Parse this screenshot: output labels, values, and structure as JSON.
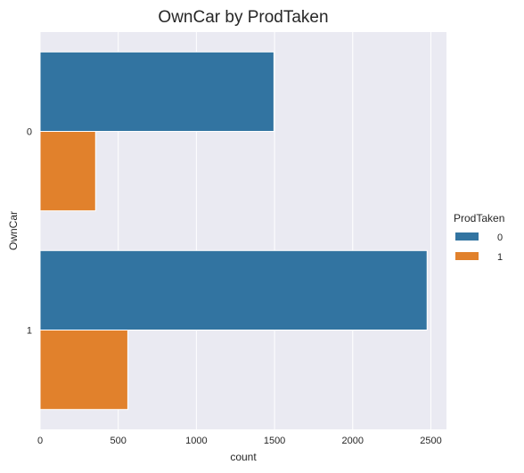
{
  "chart_data": {
    "type": "bar",
    "orientation": "horizontal",
    "title": "OwnCar by ProdTaken",
    "xlabel": "count",
    "ylabel": "OwnCar",
    "categories": [
      "0",
      "1"
    ],
    "series": [
      {
        "name": "0",
        "color": "#3274a1",
        "values": [
          1496,
          2476
        ]
      },
      {
        "name": "1",
        "color": "#e1812c",
        "values": [
          355,
          561
        ]
      }
    ],
    "xlim": [
      0,
      2600
    ],
    "xticks": [
      0,
      500,
      1000,
      1500,
      2000,
      2500
    ],
    "grid": true,
    "legend": {
      "title": "ProdTaken",
      "placement": "right",
      "entries": [
        "0",
        "1"
      ]
    }
  }
}
